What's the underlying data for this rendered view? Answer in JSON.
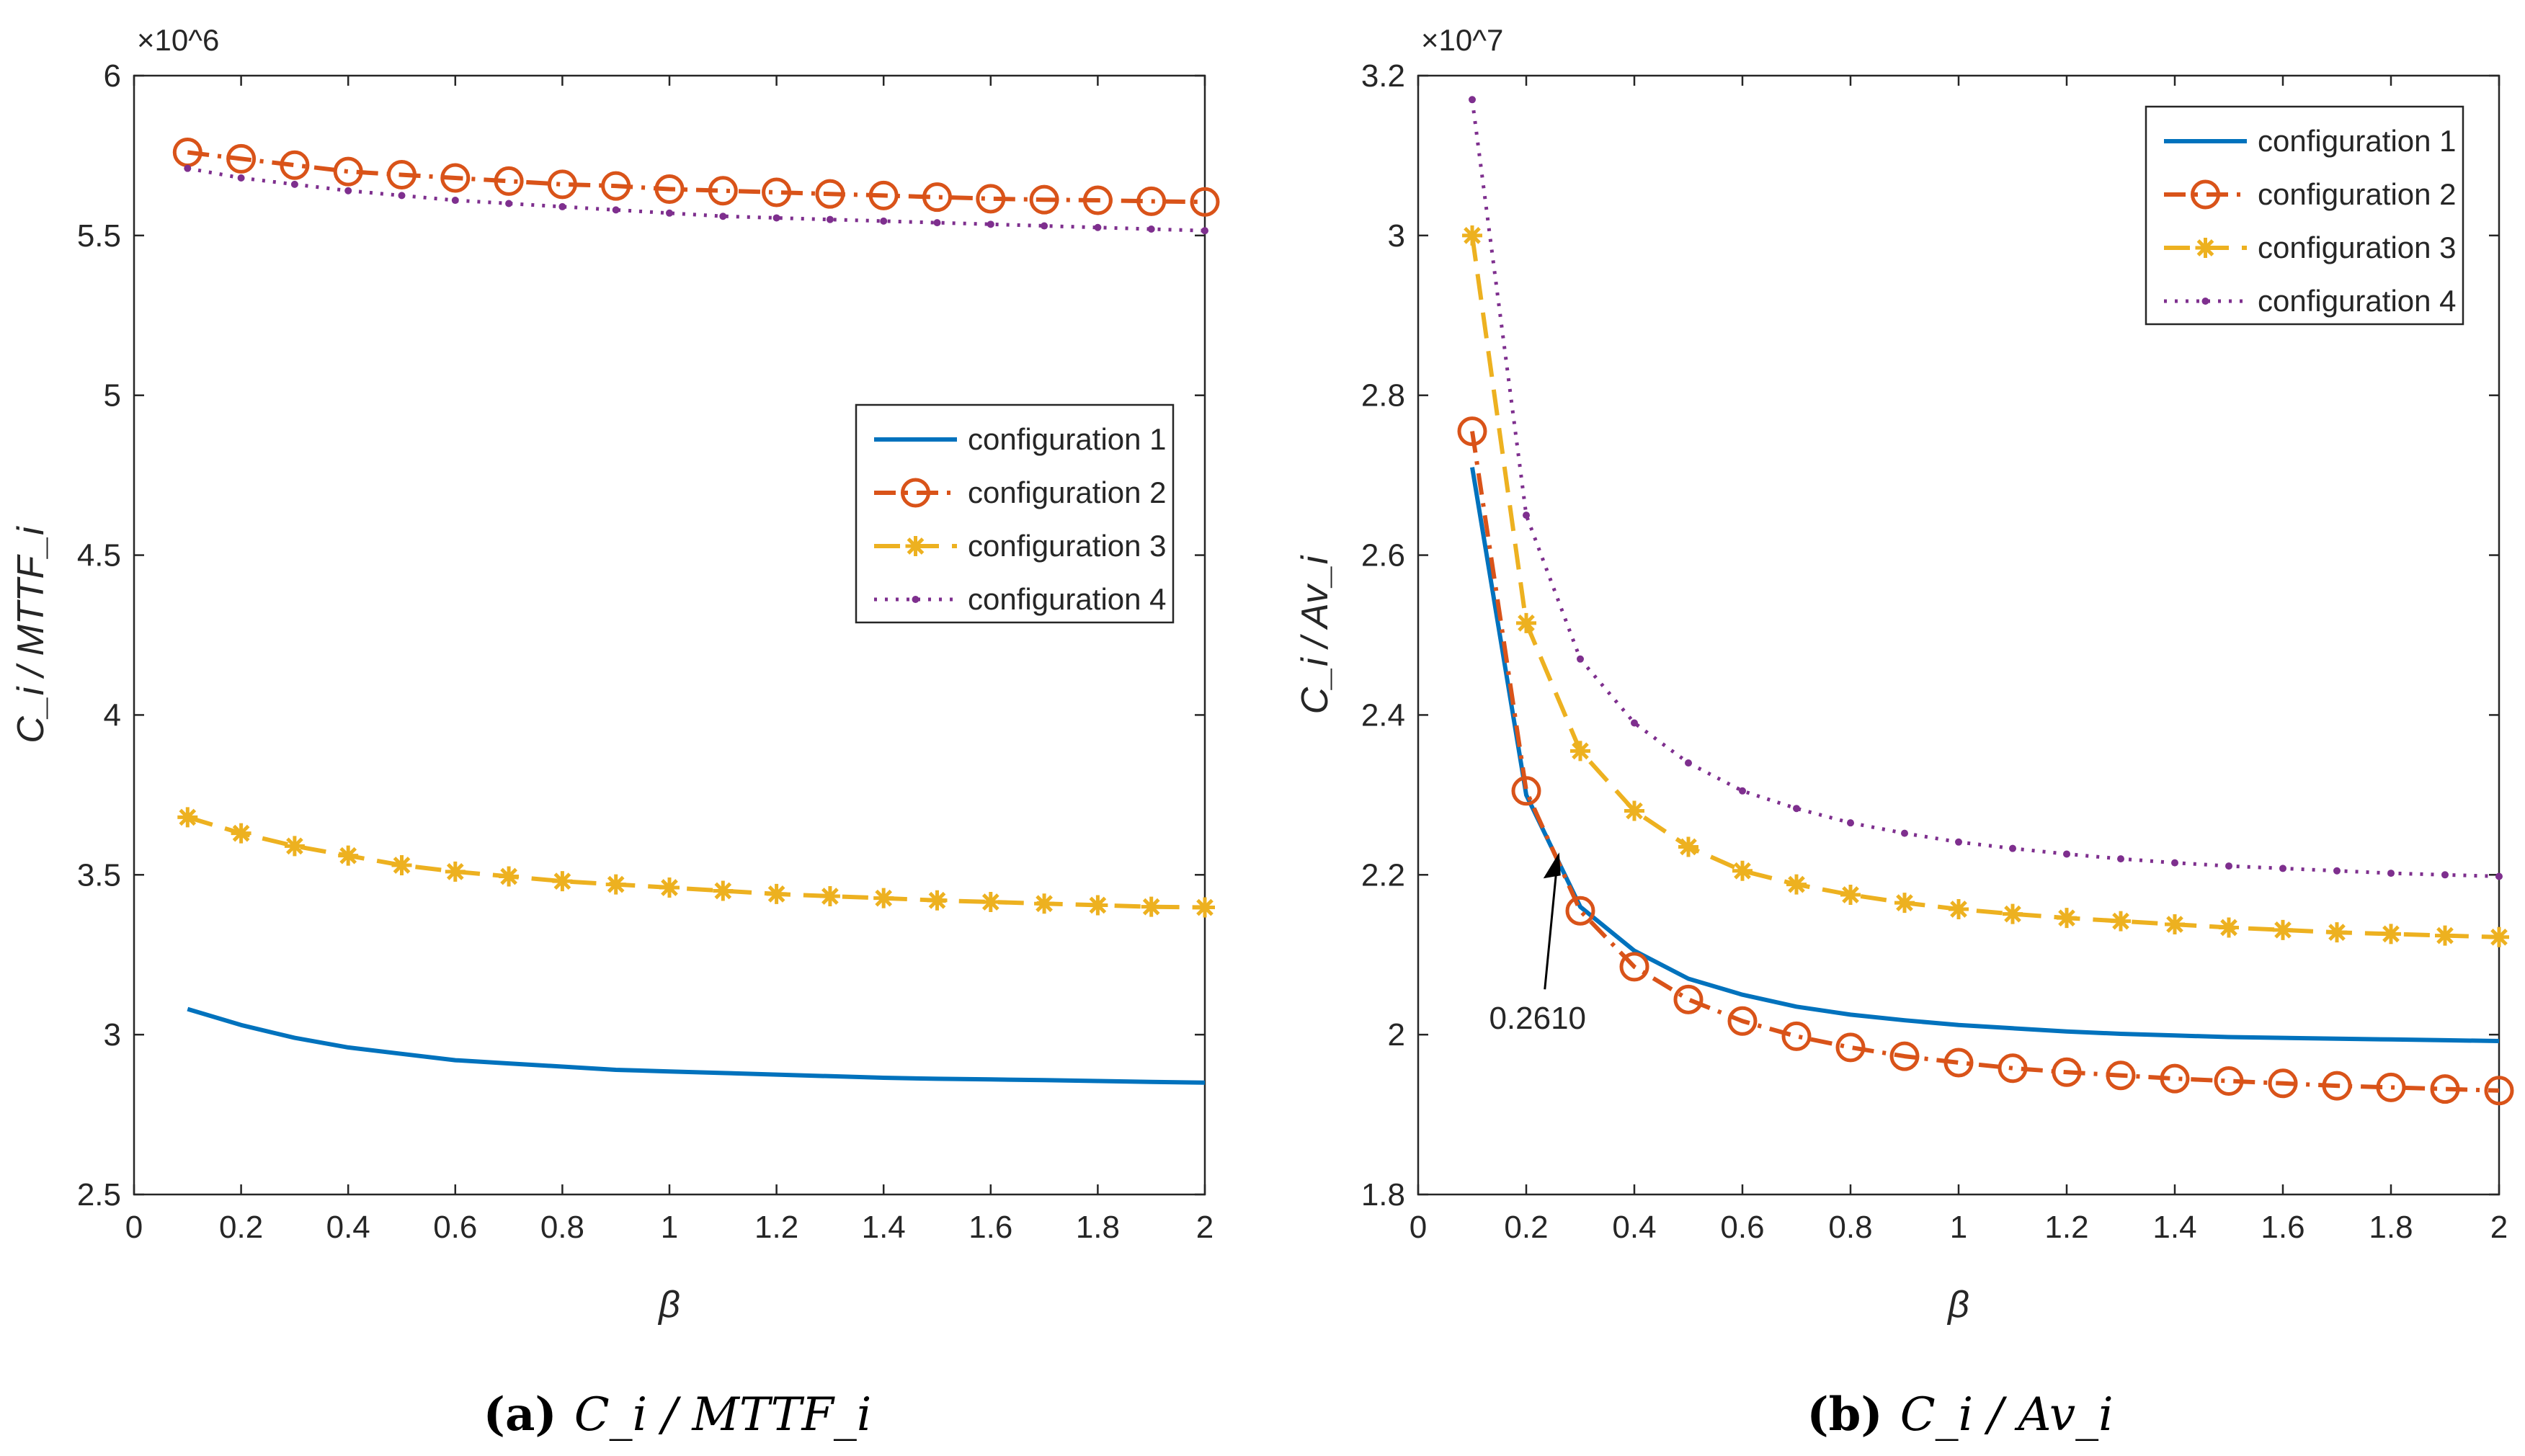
{
  "chart_data": [
    {
      "type": "line",
      "title": "",
      "caption": {
        "letter": "(a)",
        "text": "C_i / MTTF_i"
      },
      "xlabel": "β",
      "ylabel": "C_i / MTTF_i",
      "exponent_label": "×10^6",
      "x_ticks": [
        0,
        0.2,
        0.4,
        0.6,
        0.8,
        1,
        1.2,
        1.4,
        1.6,
        1.8,
        2
      ],
      "x_tick_labels": [
        "0",
        "0.2",
        "0.4",
        "0.6",
        "0.8",
        "1",
        "1.2",
        "1.4",
        "1.6",
        "1.8",
        "2"
      ],
      "y_ticks": [
        2.5,
        3,
        3.5,
        4,
        4.5,
        5,
        5.5,
        6
      ],
      "y_tick_labels": [
        "2.5",
        "3",
        "3.5",
        "4",
        "4.5",
        "5",
        "5.5",
        "6"
      ],
      "xlim": [
        0,
        2
      ],
      "ylim": [
        2.5,
        6
      ],
      "legend_position": "center-right",
      "x": [
        0.1,
        0.2,
        0.3,
        0.4,
        0.5,
        0.6,
        0.7,
        0.8,
        0.9,
        1.0,
        1.1,
        1.2,
        1.3,
        1.4,
        1.5,
        1.6,
        1.7,
        1.8,
        1.9,
        2.0
      ],
      "series": [
        {
          "name": "configuration 1",
          "style": "solid",
          "marker": "none",
          "color": "#0072BD",
          "values": [
            3.08,
            3.03,
            2.99,
            2.96,
            2.94,
            2.92,
            2.91,
            2.9,
            2.89,
            2.885,
            2.88,
            2.875,
            2.87,
            2.865,
            2.862,
            2.86,
            2.858,
            2.855,
            2.852,
            2.85
          ]
        },
        {
          "name": "configuration 2",
          "style": "dashdot",
          "marker": "circle",
          "color": "#D95319",
          "values": [
            5.76,
            5.74,
            5.72,
            5.7,
            5.69,
            5.68,
            5.67,
            5.66,
            5.655,
            5.645,
            5.64,
            5.635,
            5.63,
            5.625,
            5.62,
            5.615,
            5.612,
            5.61,
            5.607,
            5.605
          ]
        },
        {
          "name": "configuration 3",
          "style": "dashed",
          "marker": "asterisk",
          "color": "#EDB120",
          "values": [
            3.68,
            3.63,
            3.59,
            3.56,
            3.53,
            3.51,
            3.495,
            3.48,
            3.47,
            3.46,
            3.45,
            3.44,
            3.433,
            3.427,
            3.42,
            3.415,
            3.41,
            3.405,
            3.4,
            3.398
          ]
        },
        {
          "name": "configuration 4",
          "style": "dotted",
          "marker": "point",
          "color": "#7E2F8E",
          "values": [
            5.71,
            5.68,
            5.66,
            5.64,
            5.625,
            5.61,
            5.6,
            5.59,
            5.58,
            5.57,
            5.56,
            5.555,
            5.55,
            5.545,
            5.54,
            5.535,
            5.53,
            5.525,
            5.52,
            5.515
          ]
        }
      ]
    },
    {
      "type": "line",
      "title": "",
      "caption": {
        "letter": "(b)",
        "text": "C_i / Av_i"
      },
      "xlabel": "β",
      "ylabel": "C_i / Av_i",
      "exponent_label": "×10^7",
      "x_ticks": [
        0,
        0.2,
        0.4,
        0.6,
        0.8,
        1,
        1.2,
        1.4,
        1.6,
        1.8,
        2
      ],
      "x_tick_labels": [
        "0",
        "0.2",
        "0.4",
        "0.6",
        "0.8",
        "1",
        "1.2",
        "1.4",
        "1.6",
        "1.8",
        "2"
      ],
      "y_ticks": [
        1.8,
        2,
        2.2,
        2.4,
        2.6,
        2.8,
        3,
        3.2
      ],
      "y_tick_labels": [
        "1.8",
        "2",
        "2.2",
        "2.4",
        "2.6",
        "2.8",
        "3",
        "3.2"
      ],
      "xlim": [
        0,
        2
      ],
      "ylim": [
        1.8,
        3.2
      ],
      "legend_position": "top-right",
      "annotation": {
        "text": "0.2610",
        "x": 0.261,
        "y": 2.228
      },
      "x": [
        0.1,
        0.2,
        0.3,
        0.4,
        0.5,
        0.6,
        0.7,
        0.8,
        0.9,
        1.0,
        1.1,
        1.2,
        1.3,
        1.4,
        1.5,
        1.6,
        1.7,
        1.8,
        1.9,
        2.0
      ],
      "series": [
        {
          "name": "configuration 1",
          "style": "solid",
          "marker": "none",
          "color": "#0072BD",
          "values": [
            2.71,
            2.3,
            2.16,
            2.105,
            2.07,
            2.05,
            2.035,
            2.025,
            2.018,
            2.012,
            2.008,
            2.004,
            2.001,
            1.999,
            1.997,
            1.996,
            1.995,
            1.994,
            1.993,
            1.992
          ]
        },
        {
          "name": "configuration 2",
          "style": "dashdot",
          "marker": "circle",
          "color": "#D95319",
          "values": [
            2.755,
            2.305,
            2.155,
            2.085,
            2.044,
            2.017,
            1.998,
            1.984,
            1.973,
            1.965,
            1.958,
            1.953,
            1.949,
            1.945,
            1.942,
            1.939,
            1.936,
            1.934,
            1.932,
            1.93
          ]
        },
        {
          "name": "configuration 3",
          "style": "dashed",
          "marker": "asterisk",
          "color": "#EDB120",
          "values": [
            3.0,
            2.515,
            2.355,
            2.28,
            2.235,
            2.205,
            2.188,
            2.175,
            2.165,
            2.157,
            2.151,
            2.146,
            2.142,
            2.138,
            2.134,
            2.131,
            2.128,
            2.126,
            2.124,
            2.122
          ]
        },
        {
          "name": "configuration 4",
          "style": "dotted",
          "marker": "point",
          "color": "#7E2F8E",
          "values": [
            3.17,
            2.65,
            2.47,
            2.39,
            2.34,
            2.305,
            2.283,
            2.265,
            2.252,
            2.241,
            2.233,
            2.226,
            2.22,
            2.215,
            2.211,
            2.208,
            2.205,
            2.202,
            2.2,
            2.198
          ]
        }
      ]
    }
  ]
}
